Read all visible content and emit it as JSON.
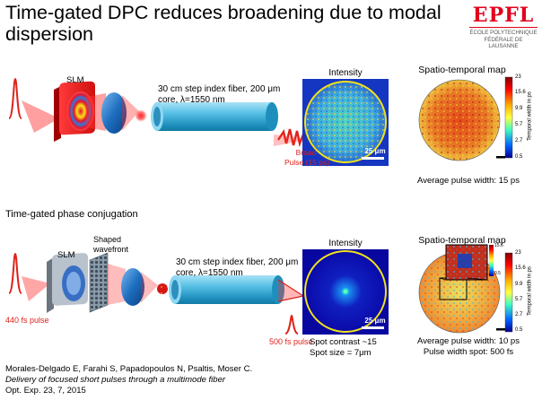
{
  "title": "Time-gated DPC reduces broadening due to modal dispersion",
  "logo": {
    "mark": "EPFL",
    "line1": "ÉCOLE POLYTECHNIQUE",
    "line2": "FÉDÉRALE DE LAUSANNE"
  },
  "top": {
    "slm_label": "SLM",
    "fiber_desc_line1": "30 cm step index fiber, 200 μm",
    "fiber_desc_line2": "core, λ=1550 nm",
    "intensity_title": "Intensity",
    "map_title": "Spatio-temporal map",
    "scale_bar": "25 μm",
    "output_line1": "Broad",
    "output_line2": "Pulse (15 ps)",
    "avg_width": "Average pulse width: 15 ps"
  },
  "section_title": "Time-gated phase conjugation",
  "bottom": {
    "slm_label": "SLM",
    "wavefront_line1": "Shaped",
    "wavefront_line2": "wavefront",
    "fiber_desc_line1": "30 cm step index fiber, 200 μm",
    "fiber_desc_line2": "core, λ=1550 nm",
    "input_pulse": "440 fs pulse",
    "output_pulse": "500 fs pulse",
    "intensity_title": "Intensity",
    "map_title": "Spatio-temporal map",
    "scale_bar": "25 μm",
    "spot_contrast": "Spot contrast ~15",
    "spot_size": "Spot size = 7μm",
    "avg_width": "Average pulse width: 10 ps",
    "spot_width": "Pulse width spot:  500 fs"
  },
  "colorbar": {
    "ticks": [
      "23",
      "15.6",
      "9.9",
      "5.7",
      "2.7",
      "0.5"
    ],
    "label": "Temporal width in ps",
    "inset_ticks": [
      "15.6",
      "0.5"
    ]
  },
  "citation": {
    "authors": "Morales-Delgado E, Farahi S, Papadopoulos N, Psaltis, Moser C.",
    "paper_title": "Delivery of focused short pulses through a multimode fiber",
    "journal": "Opt. Exp. 23, 7, 2015"
  },
  "colors": {
    "red": "#e0211a",
    "fiber": "#33a9d6",
    "lens": "#1e6fc0",
    "ring": "#f2e21a"
  }
}
